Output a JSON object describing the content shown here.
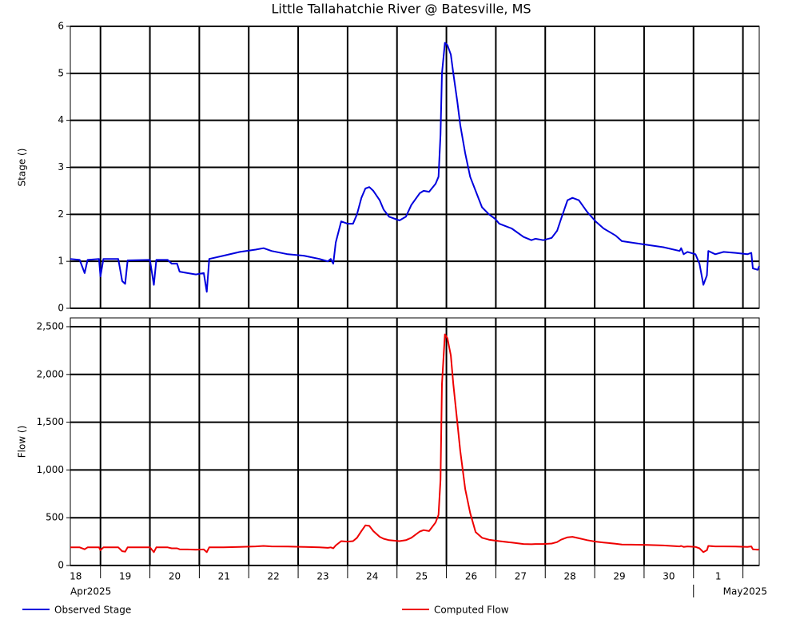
{
  "chart_data": [
    {
      "type": "line",
      "title": "Little Tallahatchie River @ Batesville, MS",
      "ylabel": "Stage ()",
      "xlim": [
        0.39,
        14.33
      ],
      "xgrid": [
        1,
        2,
        3,
        4,
        5,
        6,
        7,
        8,
        9,
        10,
        11,
        12,
        13,
        14
      ],
      "ylim": [
        0,
        6
      ],
      "yticks": [
        0,
        1,
        2,
        3,
        4,
        5,
        6
      ],
      "grid": true,
      "x": [
        0.39,
        0.58,
        0.68,
        0.74,
        0.97,
        1.0,
        1.06,
        1.36,
        1.44,
        1.5,
        1.55,
        2.0,
        2.08,
        2.13,
        2.36,
        2.44,
        2.55,
        2.6,
        2.76,
        2.93,
        3.09,
        3.15,
        3.2,
        3.49,
        3.82,
        4.14,
        4.3,
        4.46,
        4.79,
        5.11,
        5.43,
        5.6,
        5.66,
        5.71,
        5.76,
        5.87,
        6.0,
        6.11,
        6.19,
        6.28,
        6.36,
        6.44,
        6.52,
        6.65,
        6.73,
        6.84,
        7.05,
        7.18,
        7.29,
        7.46,
        7.54,
        7.65,
        7.78,
        7.84,
        7.88,
        7.91,
        7.97,
        8.02,
        8.09,
        8.14,
        8.22,
        8.28,
        8.38,
        8.48,
        8.59,
        8.72,
        8.86,
        8.99,
        9.07,
        9.32,
        9.56,
        9.72,
        9.8,
        9.96,
        10.13,
        10.24,
        10.32,
        10.45,
        10.55,
        10.68,
        10.85,
        11.02,
        11.18,
        11.42,
        11.55,
        11.74,
        12.07,
        12.39,
        12.72,
        12.75,
        12.8,
        12.88,
        13.04,
        13.12,
        13.2,
        13.27,
        13.3,
        13.44,
        13.61,
        13.85,
        14.09,
        14.17,
        14.2,
        14.3,
        14.33
      ],
      "series": [
        {
          "name": "Observed Stage",
          "color": "#0000dd",
          "values": [
            1.05,
            1.03,
            0.75,
            1.03,
            1.05,
            0.68,
            1.05,
            1.05,
            0.58,
            0.52,
            1.02,
            1.03,
            0.5,
            1.03,
            1.03,
            0.95,
            0.95,
            0.78,
            0.75,
            0.72,
            0.75,
            0.35,
            1.05,
            1.12,
            1.2,
            1.25,
            1.28,
            1.22,
            1.15,
            1.12,
            1.05,
            1.0,
            1.05,
            0.95,
            1.4,
            1.85,
            1.8,
            1.8,
            2.0,
            2.35,
            2.55,
            2.58,
            2.5,
            2.3,
            2.1,
            1.95,
            1.87,
            1.95,
            2.2,
            2.45,
            2.5,
            2.48,
            2.65,
            2.8,
            3.7,
            5.0,
            5.65,
            5.6,
            5.4,
            5.0,
            4.4,
            3.9,
            3.3,
            2.8,
            2.5,
            2.15,
            2.0,
            1.9,
            1.8,
            1.7,
            1.52,
            1.45,
            1.48,
            1.45,
            1.5,
            1.65,
            1.9,
            2.3,
            2.35,
            2.3,
            2.05,
            1.85,
            1.7,
            1.55,
            1.43,
            1.4,
            1.35,
            1.3,
            1.22,
            1.28,
            1.15,
            1.2,
            1.15,
            0.95,
            0.5,
            0.7,
            1.22,
            1.15,
            1.2,
            1.18,
            1.15,
            1.18,
            0.85,
            0.82,
            0.9
          ]
        }
      ]
    },
    {
      "type": "line",
      "ylabel": "Flow ()",
      "xlim": [
        0.39,
        14.33
      ],
      "xgrid": [
        1,
        2,
        3,
        4,
        5,
        6,
        7,
        8,
        9,
        10,
        11,
        12,
        13,
        14
      ],
      "xticks": [
        {
          "value": 0.5,
          "label": "18"
        },
        {
          "value": 1.5,
          "label": "19"
        },
        {
          "value": 2.5,
          "label": "20"
        },
        {
          "value": 3.5,
          "label": "21"
        },
        {
          "value": 4.5,
          "label": "22"
        },
        {
          "value": 5.5,
          "label": "23"
        },
        {
          "value": 6.5,
          "label": "24"
        },
        {
          "value": 7.5,
          "label": "25"
        },
        {
          "value": 8.5,
          "label": "26"
        },
        {
          "value": 9.5,
          "label": "27"
        },
        {
          "value": 10.5,
          "label": "28"
        },
        {
          "value": 11.5,
          "label": "29"
        },
        {
          "value": 12.5,
          "label": "30"
        },
        {
          "value": 13.5,
          "label": "1"
        }
      ],
      "month_labels": [
        {
          "value": 0.39,
          "label": "Apr2025"
        },
        {
          "value": 13,
          "label": "May2025"
        }
      ],
      "ylim": [
        0,
        2592
      ],
      "yticks": [
        0,
        500,
        {
          "value": 1000,
          "label": "1,000"
        },
        {
          "value": 1500,
          "label": "1,500"
        },
        {
          "value": 2000,
          "label": "2,000"
        },
        {
          "value": 2500,
          "label": "2,500"
        }
      ],
      "grid": true,
      "x": [
        0.39,
        0.58,
        0.68,
        0.74,
        0.97,
        1.0,
        1.06,
        1.36,
        1.44,
        1.5,
        1.55,
        2.0,
        2.08,
        2.13,
        2.36,
        2.44,
        2.55,
        2.6,
        2.76,
        2.93,
        3.09,
        3.15,
        3.2,
        3.49,
        3.82,
        4.14,
        4.3,
        4.46,
        4.79,
        5.11,
        5.43,
        5.6,
        5.66,
        5.71,
        5.76,
        5.87,
        6.0,
        6.11,
        6.19,
        6.28,
        6.36,
        6.44,
        6.52,
        6.65,
        6.73,
        6.84,
        7.05,
        7.18,
        7.29,
        7.46,
        7.54,
        7.65,
        7.78,
        7.84,
        7.88,
        7.91,
        7.97,
        8.02,
        8.09,
        8.14,
        8.22,
        8.28,
        8.38,
        8.48,
        8.59,
        8.72,
        8.86,
        8.99,
        9.07,
        9.32,
        9.56,
        9.72,
        9.8,
        9.96,
        10.13,
        10.24,
        10.32,
        10.45,
        10.55,
        10.68,
        10.85,
        11.02,
        11.18,
        11.42,
        11.55,
        11.74,
        12.07,
        12.39,
        12.72,
        12.75,
        12.8,
        12.88,
        13.04,
        13.12,
        13.2,
        13.27,
        13.3,
        13.44,
        13.61,
        13.85,
        14.09,
        14.17,
        14.2,
        14.3,
        14.33
      ],
      "series": [
        {
          "name": "Computed Flow",
          "color": "#ee0000",
          "values": [
            190,
            190,
            170,
            190,
            190,
            160,
            190,
            190,
            150,
            145,
            190,
            190,
            140,
            190,
            190,
            180,
            180,
            170,
            168,
            165,
            168,
            140,
            190,
            190,
            195,
            200,
            205,
            200,
            198,
            195,
            190,
            185,
            190,
            180,
            210,
            255,
            250,
            255,
            290,
            360,
            420,
            415,
            360,
            300,
            280,
            265,
            255,
            265,
            290,
            355,
            370,
            360,
            450,
            530,
            900,
            1900,
            2420,
            2380,
            2200,
            1900,
            1500,
            1200,
            800,
            550,
            350,
            290,
            270,
            260,
            255,
            240,
            225,
            222,
            225,
            225,
            230,
            245,
            270,
            295,
            300,
            285,
            265,
            250,
            240,
            228,
            220,
            218,
            215,
            210,
            200,
            205,
            195,
            200,
            195,
            180,
            140,
            160,
            205,
            200,
            200,
            198,
            195,
            200,
            170,
            165,
            170
          ]
        }
      ]
    }
  ]
}
